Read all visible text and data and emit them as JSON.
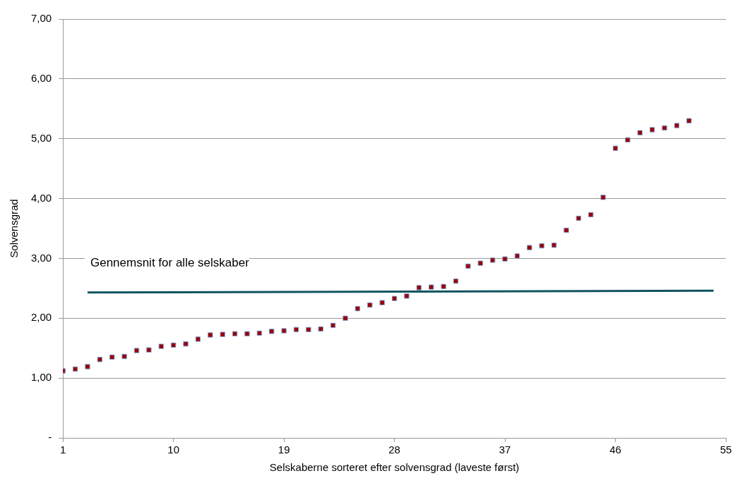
{
  "chart_data": {
    "type": "scatter",
    "xlabel": "Selskaberne sorteret efter solvensgrad (laveste først)",
    "ylabel": "Solvensgrad",
    "x": [
      1,
      2,
      3,
      4,
      5,
      6,
      7,
      8,
      9,
      10,
      11,
      12,
      13,
      14,
      15,
      16,
      17,
      18,
      19,
      20,
      21,
      22,
      23,
      24,
      25,
      26,
      27,
      28,
      29,
      30,
      31,
      32,
      33,
      34,
      35,
      36,
      37,
      38,
      39,
      40,
      41,
      42,
      43,
      44,
      45,
      46,
      47,
      48,
      49,
      50,
      51,
      52
    ],
    "series": [
      {
        "color": "#990000",
        "marker": "square",
        "values": [
          1.12,
          1.15,
          1.19,
          1.31,
          1.35,
          1.36,
          1.46,
          1.47,
          1.53,
          1.55,
          1.57,
          1.65,
          1.72,
          1.73,
          1.74,
          1.74,
          1.75,
          1.78,
          1.79,
          1.81,
          1.81,
          1.82,
          1.88,
          2.0,
          2.16,
          2.22,
          2.26,
          2.33,
          2.37,
          2.51,
          2.52,
          2.53,
          2.62,
          2.87,
          2.92,
          2.97,
          2.99,
          3.04,
          3.18,
          3.21,
          3.22,
          3.47,
          3.67,
          3.73,
          4.02,
          4.84,
          4.98,
          5.1,
          5.15,
          5.18,
          5.22,
          5.3
        ]
      },
      {
        "type": "line",
        "name": "Gennemsnit for alle selskaber",
        "color": "#0f5460",
        "marker": "none",
        "x": [
          3,
          54
        ],
        "values": [
          2.43,
          2.46
        ]
      }
    ],
    "xlim": [
      1,
      55
    ],
    "xticks": [
      1,
      10,
      19,
      28,
      37,
      46,
      55
    ],
    "ylim": [
      0,
      7
    ],
    "yticks": [
      {
        "value": 0,
        "label": "-"
      },
      {
        "value": 1,
        "label": "1,00"
      },
      {
        "value": 2,
        "label": "2,00"
      },
      {
        "value": 3,
        "label": "3,00"
      },
      {
        "value": 4,
        "label": "4,00"
      },
      {
        "value": 5,
        "label": "5,00"
      },
      {
        "value": 6,
        "label": "6,00"
      },
      {
        "value": 7,
        "label": "7,00"
      }
    ],
    "grid": "y",
    "legend": false
  }
}
